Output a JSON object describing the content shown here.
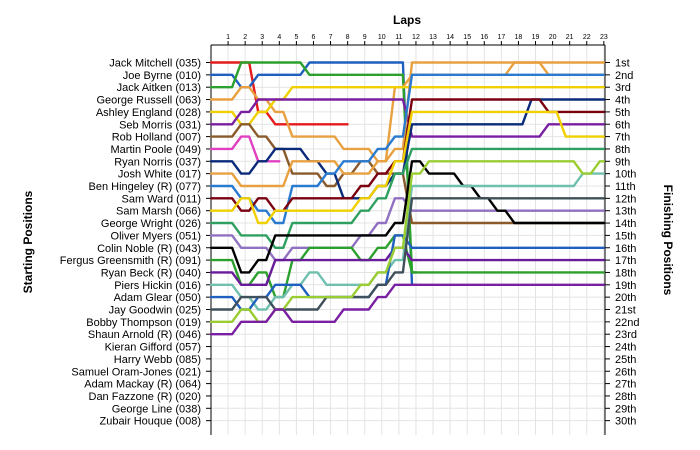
{
  "chart_data": {
    "type": "line",
    "title": "",
    "xlabel": "Laps",
    "ylabel_left": "Starting Positions",
    "ylabel_right": "Finishing Positions",
    "laps": [
      1,
      2,
      3,
      4,
      5,
      6,
      7,
      8,
      9,
      10,
      11,
      12,
      13,
      14,
      15,
      16,
      17,
      18,
      19,
      20,
      21,
      22,
      23
    ],
    "starting_positions": [
      "Jack Mitchell (035)",
      "Joe Byrne (010)",
      "Jack Aitken (013)",
      "George Russell (063)",
      "Ashley England (028)",
      "Seb Morris (031)",
      "Rob Holland (007)",
      "Martin Poole (049)",
      "Ryan Norris (037)",
      "Josh White (017)",
      "Ben Hingeley (R) (077)",
      "Sam Ward (011)",
      "Sam Marsh (066)",
      "George Wright (026)",
      "Oliver Myers (051)",
      "Colin Noble (R) (043)",
      "Fergus Greensmith (R) (091)",
      "Ryan Beck (R) (040)",
      "Piers Hickin (016)",
      "Adam Glear (050)",
      "Jay Goodwin (025)",
      "Bobby Thompson (019)",
      "Shaun Arnold (R) (046)",
      "Kieran Gifford (057)",
      "Harry Webb (085)",
      "Samuel Oram-Jones (021)",
      "Adam Mackay (R) (064)",
      "Dan Fazzone (R) (020)",
      "George Line (038)",
      "Zubair Houque (008)"
    ],
    "finishing_positions": [
      "1st",
      "2nd",
      "3rd",
      "4th",
      "5th",
      "6th",
      "7th",
      "8th",
      "9th",
      "10th",
      "11th",
      "12th",
      "13th",
      "14th",
      "15th",
      "16th",
      "17th",
      "18th",
      "19th",
      "20th",
      "21st",
      "22nd",
      "23rd",
      "24th",
      "25th",
      "26th",
      "27th",
      "28th",
      "29th",
      "30th"
    ],
    "series": [
      {
        "color": "#e41a1c",
        "positions": [
          1,
          1,
          5,
          6,
          6,
          6,
          6,
          6
        ]
      },
      {
        "color": "#1f5fbf",
        "positions": [
          2,
          3,
          2,
          2,
          2,
          1,
          1,
          1,
          1,
          1,
          1,
          19
        ]
      },
      {
        "color": "#2ca02c",
        "positions": [
          3,
          1,
          1,
          1,
          1,
          2,
          2,
          2,
          2,
          2,
          2,
          18
        ]
      },
      {
        "color": "#e8a040",
        "positions": [
          4,
          3,
          4,
          5,
          7,
          7,
          7,
          8,
          8,
          9,
          3,
          2,
          2,
          2,
          2,
          2,
          2,
          1,
          1,
          1,
          1,
          1,
          1
        ]
      },
      {
        "color": "#f0d000",
        "positions": [
          5,
          6,
          5,
          4,
          3,
          3,
          3,
          3,
          3,
          3,
          3,
          3,
          3,
          3,
          3,
          3,
          3,
          3,
          3,
          3,
          3,
          3,
          3
        ]
      },
      {
        "color": "#7b1fa2",
        "positions": [
          6,
          5,
          4,
          4,
          4,
          4,
          4,
          4,
          4,
          4,
          4,
          7,
          7,
          7,
          7,
          7,
          7,
          7,
          7,
          6,
          6,
          6,
          6
        ]
      },
      {
        "color": "#8b5a2b",
        "positions": [
          7,
          6,
          7,
          8,
          10,
          10,
          11,
          10,
          9,
          10,
          10,
          14,
          14,
          14,
          14,
          14,
          14,
          14,
          14,
          14,
          14,
          14,
          14
        ]
      },
      {
        "color": "#e040c0",
        "positions": [
          8,
          7,
          9,
          9
        ]
      },
      {
        "color": "#0a2a7a",
        "positions": [
          9,
          10,
          9,
          8,
          8,
          9,
          10,
          12,
          12,
          11,
          10,
          6,
          6,
          6,
          6,
          6,
          6,
          6,
          4,
          4,
          4,
          4,
          4
        ]
      },
      {
        "color": "#e8a040",
        "positions": [
          10,
          11,
          11,
          11,
          9,
          9,
          9,
          10,
          10,
          9,
          8,
          1,
          1,
          1,
          1,
          1,
          1,
          1,
          1,
          2,
          2,
          2,
          2
        ]
      },
      {
        "color": "#2a7ad0",
        "positions": [
          11,
          12,
          13,
          14,
          11,
          11,
          10,
          9,
          9,
          8,
          7,
          2,
          2,
          2,
          2,
          2,
          2,
          2,
          2,
          2,
          2,
          2,
          2
        ]
      },
      {
        "color": "#7a0010",
        "positions": [
          12,
          13,
          12,
          13,
          12,
          12,
          12,
          12,
          11,
          10,
          9,
          4,
          4,
          4,
          4,
          4,
          4,
          4,
          4,
          5,
          5,
          5,
          5
        ]
      },
      {
        "color": "#f0d000",
        "positions": [
          13,
          12,
          14,
          13,
          13,
          13,
          13,
          13,
          12,
          11,
          9,
          5,
          5,
          5,
          5,
          5,
          5,
          5,
          5,
          5,
          7,
          7,
          7
        ]
      },
      {
        "color": "#30a060",
        "positions": [
          14,
          15,
          15,
          16,
          14,
          14,
          14,
          14,
          13,
          12,
          10,
          8,
          8,
          8,
          8,
          8,
          8,
          8,
          8,
          8,
          8,
          8,
          8
        ]
      },
      {
        "color": "#9070c0",
        "positions": [
          15,
          16,
          16,
          17,
          16,
          16,
          16,
          16,
          15,
          14,
          12,
          13,
          13,
          13,
          13,
          13,
          13,
          13,
          13,
          13,
          13,
          13,
          13
        ]
      },
      {
        "color": "#000000",
        "positions": [
          16,
          18,
          17,
          15,
          15,
          15,
          15,
          15,
          15,
          15,
          14,
          9,
          10,
          10,
          11,
          12,
          13,
          14,
          14,
          14,
          14,
          14,
          14
        ]
      },
      {
        "color": "#2ca02c",
        "positions": [
          17,
          19,
          18,
          20,
          17,
          16,
          16,
          16,
          17,
          16,
          15,
          18,
          18,
          18,
          18,
          18,
          18,
          18,
          18,
          18,
          18,
          18,
          18
        ]
      },
      {
        "color": "#6a1b9a",
        "positions": [
          18,
          19,
          19,
          17,
          17,
          17,
          17,
          17,
          17,
          17,
          16,
          17,
          17,
          17,
          17,
          17,
          17,
          17,
          17,
          17,
          17,
          17,
          17
        ]
      },
      {
        "color": "#70c0b0",
        "positions": [
          19,
          20,
          21,
          20,
          19,
          18,
          19,
          19,
          19,
          18,
          17,
          11,
          11,
          11,
          11,
          11,
          11,
          11,
          11,
          11,
          11,
          10,
          10
        ]
      },
      {
        "color": "#1f5fbf",
        "positions": [
          20,
          21,
          20,
          19,
          19,
          20,
          20,
          20,
          20,
          19,
          15,
          16,
          16,
          16,
          16,
          16,
          16,
          16,
          16,
          16,
          16,
          16,
          16
        ]
      },
      {
        "color": "#40505a",
        "positions": [
          21,
          20,
          20,
          21,
          21,
          21,
          20,
          20,
          20,
          19,
          18,
          12,
          12,
          12,
          12,
          12,
          12,
          12,
          12,
          12,
          12,
          12,
          12
        ]
      },
      {
        "color": "#9acd32",
        "positions": [
          22,
          21,
          22,
          21,
          20,
          20,
          20,
          20,
          19,
          18,
          16,
          10,
          9,
          9,
          9,
          9,
          9,
          9,
          9,
          9,
          9,
          10,
          9
        ]
      },
      {
        "color": "#7b1fa2",
        "positions": [
          23,
          22,
          22,
          21,
          22,
          22,
          22,
          21,
          21,
          20,
          19,
          19,
          19,
          19,
          19,
          19,
          19,
          19,
          19,
          19,
          19,
          19,
          19
        ]
      }
    ]
  }
}
